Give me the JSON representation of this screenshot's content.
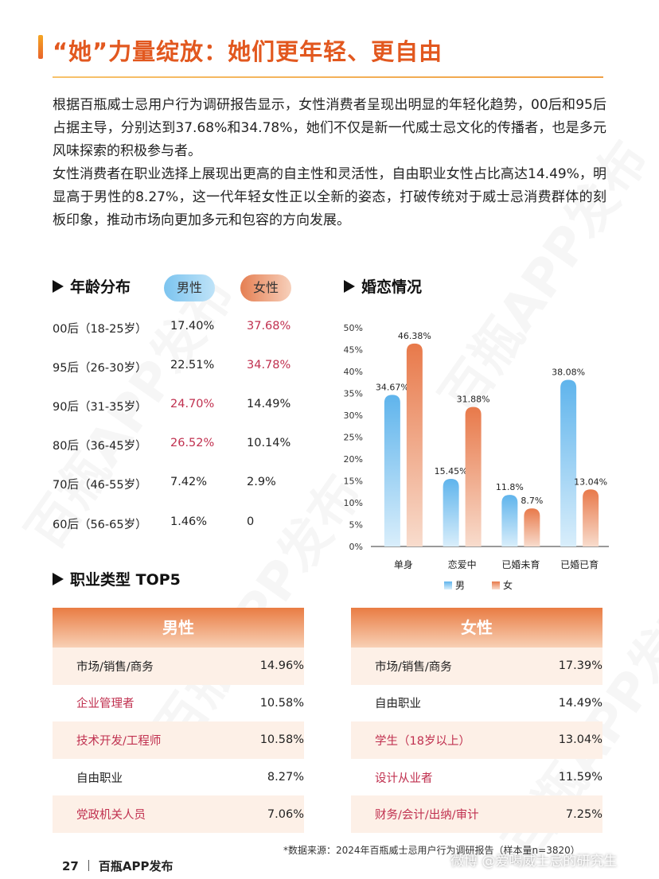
{
  "title": "“她”力量绽放：她们更年轻、更自由",
  "intro": {
    "p1": "根据百瓶威士忌用户行为调研报告显示，女性消费者呈现出明显的年轻化趋势，00后和95后占据主导，分别达到37.68%和34.78%，她们不仅是新一代威士忌文化的传播者，也是多元风味探索的积极参与者。",
    "p2": "女性消费者在职业选择上展现出更高的自主性和灵活性，自由职业女性占比高达14.49%，明显高于男性的8.27%，这一代年轻女性正以全新的姿态，打破传统对于威士忌消费群体的刻板印象，推动市场向更加多元和包容的方向发展。"
  },
  "age_section": {
    "heading": "年龄分布",
    "male_label": "男性",
    "female_label": "女性",
    "rows": [
      {
        "label": "00后（18-25岁）",
        "male": "17.40%",
        "female": "37.68%",
        "highlight": "female"
      },
      {
        "label": "95后（26-30岁）",
        "male": "22.51%",
        "female": "34.78%",
        "highlight": "female"
      },
      {
        "label": "90后（31-35岁）",
        "male": "24.70%",
        "female": "14.49%",
        "highlight": "male"
      },
      {
        "label": "80后（36-45岁）",
        "male": "26.52%",
        "female": "10.14%",
        "highlight": "male"
      },
      {
        "label": "70后（46-55岁）",
        "male": "7.42%",
        "female": "2.9%",
        "highlight": "none"
      },
      {
        "label": "60后（56-65岁）",
        "male": "1.46%",
        "female": "0",
        "highlight": "none"
      }
    ]
  },
  "marriage_section": {
    "heading": "婚恋情况"
  },
  "chart_data": {
    "type": "bar",
    "categories": [
      "单身",
      "恋爱中",
      "已婚未育",
      "已婚已育"
    ],
    "series": [
      {
        "name": "男",
        "values": [
          34.67,
          15.45,
          11.8,
          38.08
        ],
        "labels": [
          "34.67%",
          "15.45%",
          "11.8%",
          "38.08%"
        ]
      },
      {
        "name": "女",
        "values": [
          46.38,
          31.88,
          8.7,
          13.04
        ],
        "labels": [
          "46.38%",
          "31.88%",
          "8.7%",
          "13.04%"
        ]
      }
    ],
    "yticks": [
      "0%",
      "5%",
      "10%",
      "15%",
      "20%",
      "25%",
      "30%",
      "35%",
      "40%",
      "45%",
      "50%"
    ],
    "ylim": [
      0,
      50
    ],
    "legend": "bottom",
    "colors": {
      "male": "#5fb4ec",
      "female": "#e8794a"
    }
  },
  "job_section": {
    "heading": "职业类型 TOP5",
    "male": {
      "title": "男性",
      "rows": [
        {
          "job": "市场/销售/商务",
          "pct": "14.96%",
          "highlight": false
        },
        {
          "job": "企业管理者",
          "pct": "10.58%",
          "highlight": true
        },
        {
          "job": "技术开发/工程师",
          "pct": "10.58%",
          "highlight": true
        },
        {
          "job": "自由职业",
          "pct": "8.27%",
          "highlight": false
        },
        {
          "job": "党政机关人员",
          "pct": "7.06%",
          "highlight": true
        }
      ]
    },
    "female": {
      "title": "女性",
      "rows": [
        {
          "job": "市场/销售/商务",
          "pct": "17.39%",
          "highlight": false
        },
        {
          "job": "自由职业",
          "pct": "14.49%",
          "highlight": false
        },
        {
          "job": "学生（18岁以上）",
          "pct": "13.04%",
          "highlight": true
        },
        {
          "job": "设计从业者",
          "pct": "11.59%",
          "highlight": true
        },
        {
          "job": "财务/会计/出纳/审计",
          "pct": "7.25%",
          "highlight": true
        }
      ]
    }
  },
  "source": "*数据来源：2024年百瓶威士忌用户行为调研报告（样本量n=3820）",
  "footer": {
    "page": "27",
    "brand": "百瓶APP发布"
  },
  "weibo_mark": "微博 @爱喝威士忌的研究生",
  "watermark_text": "百瓶APP发布",
  "colors": {
    "accent": "#e2581f",
    "highlight": "#c0304f"
  }
}
